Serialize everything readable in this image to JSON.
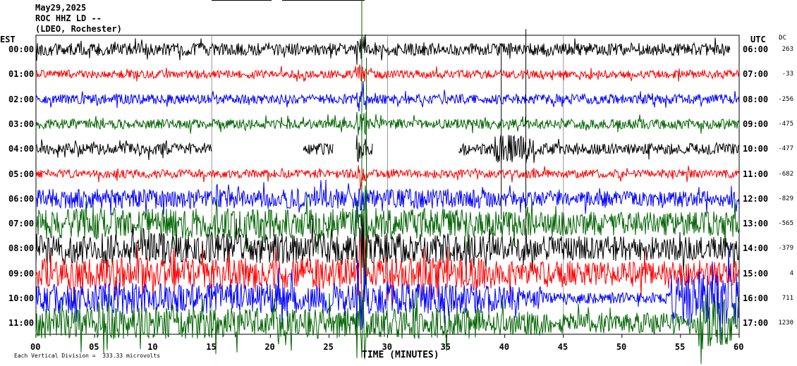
{
  "header": {
    "date": "May29,2025",
    "station": "ROC HHZ LD --",
    "network": "(LDEO, Rochester)"
  },
  "chart_data": {
    "type": "line",
    "title": "",
    "left_axis_label": "EST",
    "right_axis_label": "UTC",
    "dc_label": "DC",
    "xlabel": "TIME (MINUTES)",
    "xlim": [
      0,
      60
    ],
    "xticks": [
      "00",
      "05",
      "10",
      "15",
      "20",
      "25",
      "30",
      "35",
      "40",
      "45",
      "50",
      "55",
      "60"
    ],
    "scale_note": "Each Vertical Division =  333.33 microvolts",
    "trace_colors": [
      "#000000",
      "#ff0000",
      "#0000ff",
      "#006400"
    ],
    "rows": [
      {
        "est": "00:00",
        "utc": "06:00",
        "dc": "263"
      },
      {
        "est": "01:00",
        "utc": "07:00",
        "dc": "-33"
      },
      {
        "est": "02:00",
        "utc": "08:00",
        "dc": "-256"
      },
      {
        "est": "03:00",
        "utc": "09:00",
        "dc": "-475"
      },
      {
        "est": "04:00",
        "utc": "10:00",
        "dc": "-477"
      },
      {
        "est": "05:00",
        "utc": "11:00",
        "dc": "-682"
      },
      {
        "est": "06:00",
        "utc": "12:00",
        "dc": "-829"
      },
      {
        "est": "07:00",
        "utc": "13:00",
        "dc": "-565"
      },
      {
        "est": "08:00",
        "utc": "14:00",
        "dc": "-379"
      },
      {
        "est": "09:00",
        "utc": "15:00",
        "dc": "4"
      },
      {
        "est": "10:00",
        "utc": "16:00",
        "dc": "711"
      },
      {
        "est": "11:00",
        "utc": "17:00",
        "dc": "1230"
      }
    ]
  }
}
